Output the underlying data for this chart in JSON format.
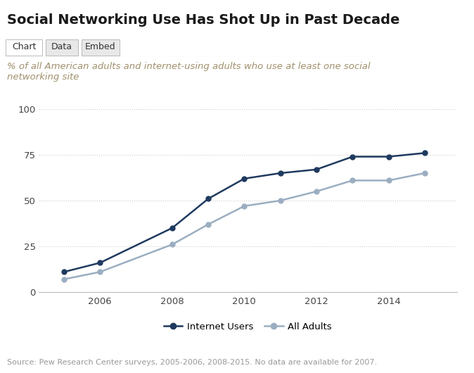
{
  "title": "Social Networking Use Has Shot Up in Past Decade",
  "subtitle": "% of all American adults and internet-using adults who use at least one social\nnetworking site",
  "source": "Source: Pew Research Center surveys, 2005-2006, 2008-2015. No data are available for 2007.",
  "tab_labels": [
    "Chart",
    "Data",
    "Embed"
  ],
  "years": [
    2005,
    2006,
    2008,
    2009,
    2010,
    2011,
    2012,
    2013,
    2014,
    2015
  ],
  "internet_users": [
    11,
    16,
    35,
    51,
    62,
    65,
    67,
    74,
    74,
    76
  ],
  "all_adults": [
    7,
    11,
    26,
    37,
    47,
    50,
    55,
    61,
    61,
    65
  ],
  "internet_users_color": "#1f3a5f",
  "all_adults_color": "#9baec1",
  "background_color": "#ffffff",
  "grid_color": "#cccccc",
  "ylim": [
    0,
    100
  ],
  "yticks": [
    0,
    25,
    50,
    75,
    100
  ],
  "title_fontsize": 14,
  "subtitle_fontsize": 9.5,
  "source_fontsize": 8,
  "axis_fontsize": 9.5,
  "legend_fontsize": 9.5,
  "tab_fontsize": 9
}
